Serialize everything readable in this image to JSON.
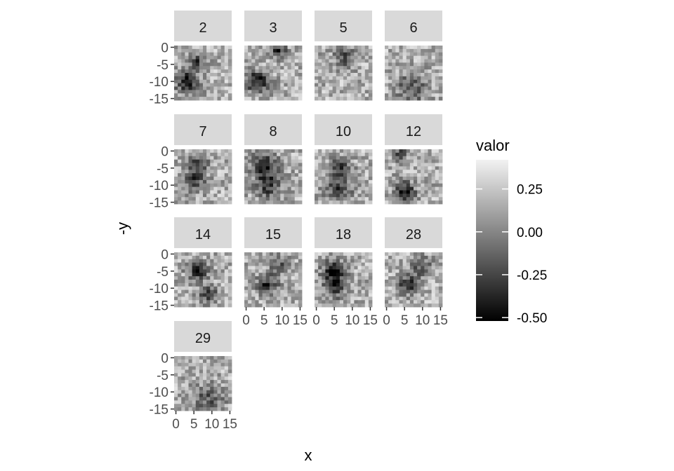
{
  "chart_data": {
    "type": "heatmap",
    "facets": [
      "2",
      "3",
      "5",
      "6",
      "7",
      "8",
      "10",
      "12",
      "14",
      "15",
      "18",
      "28",
      "29"
    ],
    "ncol": 4,
    "xlabel": "x",
    "ylabel": "-y",
    "x_range": [
      0,
      15
    ],
    "y_range": [
      -15,
      0
    ],
    "x_ticks": [
      0,
      5,
      10,
      15
    ],
    "x_tick_labels": [
      "0",
      "5",
      "10",
      "15"
    ],
    "y_ticks": [
      0,
      -5,
      -10,
      -15
    ],
    "y_tick_labels": [
      "0",
      "-5",
      "-10",
      "-15"
    ],
    "grid_size": 16,
    "legend": {
      "title": "valor",
      "position": "right",
      "range": [
        -0.52,
        0.42
      ],
      "breaks": [
        0.25,
        0,
        -0.25,
        -0.5
      ],
      "labels": [
        "0.25",
        "0.00",
        "-0.25",
        "-0.50"
      ],
      "low_color": "#000000",
      "high_color": "#f2f2f2"
    },
    "approx_dark_features": {
      "2": [
        {
          "x": 3,
          "y": 10,
          "v": -0.5,
          "r": 2.2
        },
        {
          "x": 6,
          "y": 4,
          "v": -0.3,
          "r": 1.5
        }
      ],
      "3": [
        {
          "x": 3,
          "y": 10,
          "v": -0.5,
          "r": 2.2
        },
        {
          "x": 9,
          "y": 1,
          "v": -0.4,
          "r": 1.5
        }
      ],
      "5": [
        {
          "x": 8,
          "y": 3,
          "v": -0.25,
          "r": 2
        }
      ],
      "6": [
        {
          "x": 7,
          "y": 12,
          "v": -0.25,
          "r": 3
        }
      ],
      "7": [
        {
          "x": 6,
          "y": 4,
          "v": -0.35,
          "r": 2
        },
        {
          "x": 5,
          "y": 9,
          "v": -0.3,
          "r": 2.2
        }
      ],
      "8": [
        {
          "x": 5,
          "y": 4,
          "v": -0.4,
          "r": 2.5
        },
        {
          "x": 6,
          "y": 10,
          "v": -0.35,
          "r": 2.5
        }
      ],
      "10": [
        {
          "x": 7,
          "y": 5,
          "v": -0.35,
          "r": 2
        },
        {
          "x": 6,
          "y": 11,
          "v": -0.35,
          "r": 2.5
        }
      ],
      "12": [
        {
          "x": 5,
          "y": 12,
          "v": -0.5,
          "r": 2
        },
        {
          "x": 4,
          "y": 1,
          "v": -0.3,
          "r": 1.3
        }
      ],
      "14": [
        {
          "x": 6,
          "y": 5,
          "v": -0.35,
          "r": 2
        },
        {
          "x": 9,
          "y": 12,
          "v": -0.25,
          "r": 2
        }
      ],
      "15": [
        {
          "x": 6,
          "y": 9,
          "v": -0.4,
          "r": 2
        },
        {
          "x": 9,
          "y": 3,
          "v": -0.2,
          "r": 2
        }
      ],
      "18": [
        {
          "x": 5,
          "y": 5,
          "v": -0.5,
          "r": 2.2
        },
        {
          "x": 5,
          "y": 10,
          "v": -0.35,
          "r": 2.2
        }
      ],
      "28": [
        {
          "x": 6,
          "y": 9,
          "v": -0.4,
          "r": 2
        },
        {
          "x": 10,
          "y": 4,
          "v": -0.25,
          "r": 2
        }
      ],
      "29": [
        {
          "x": 9,
          "y": 12,
          "v": -0.2,
          "r": 3
        }
      ]
    }
  }
}
